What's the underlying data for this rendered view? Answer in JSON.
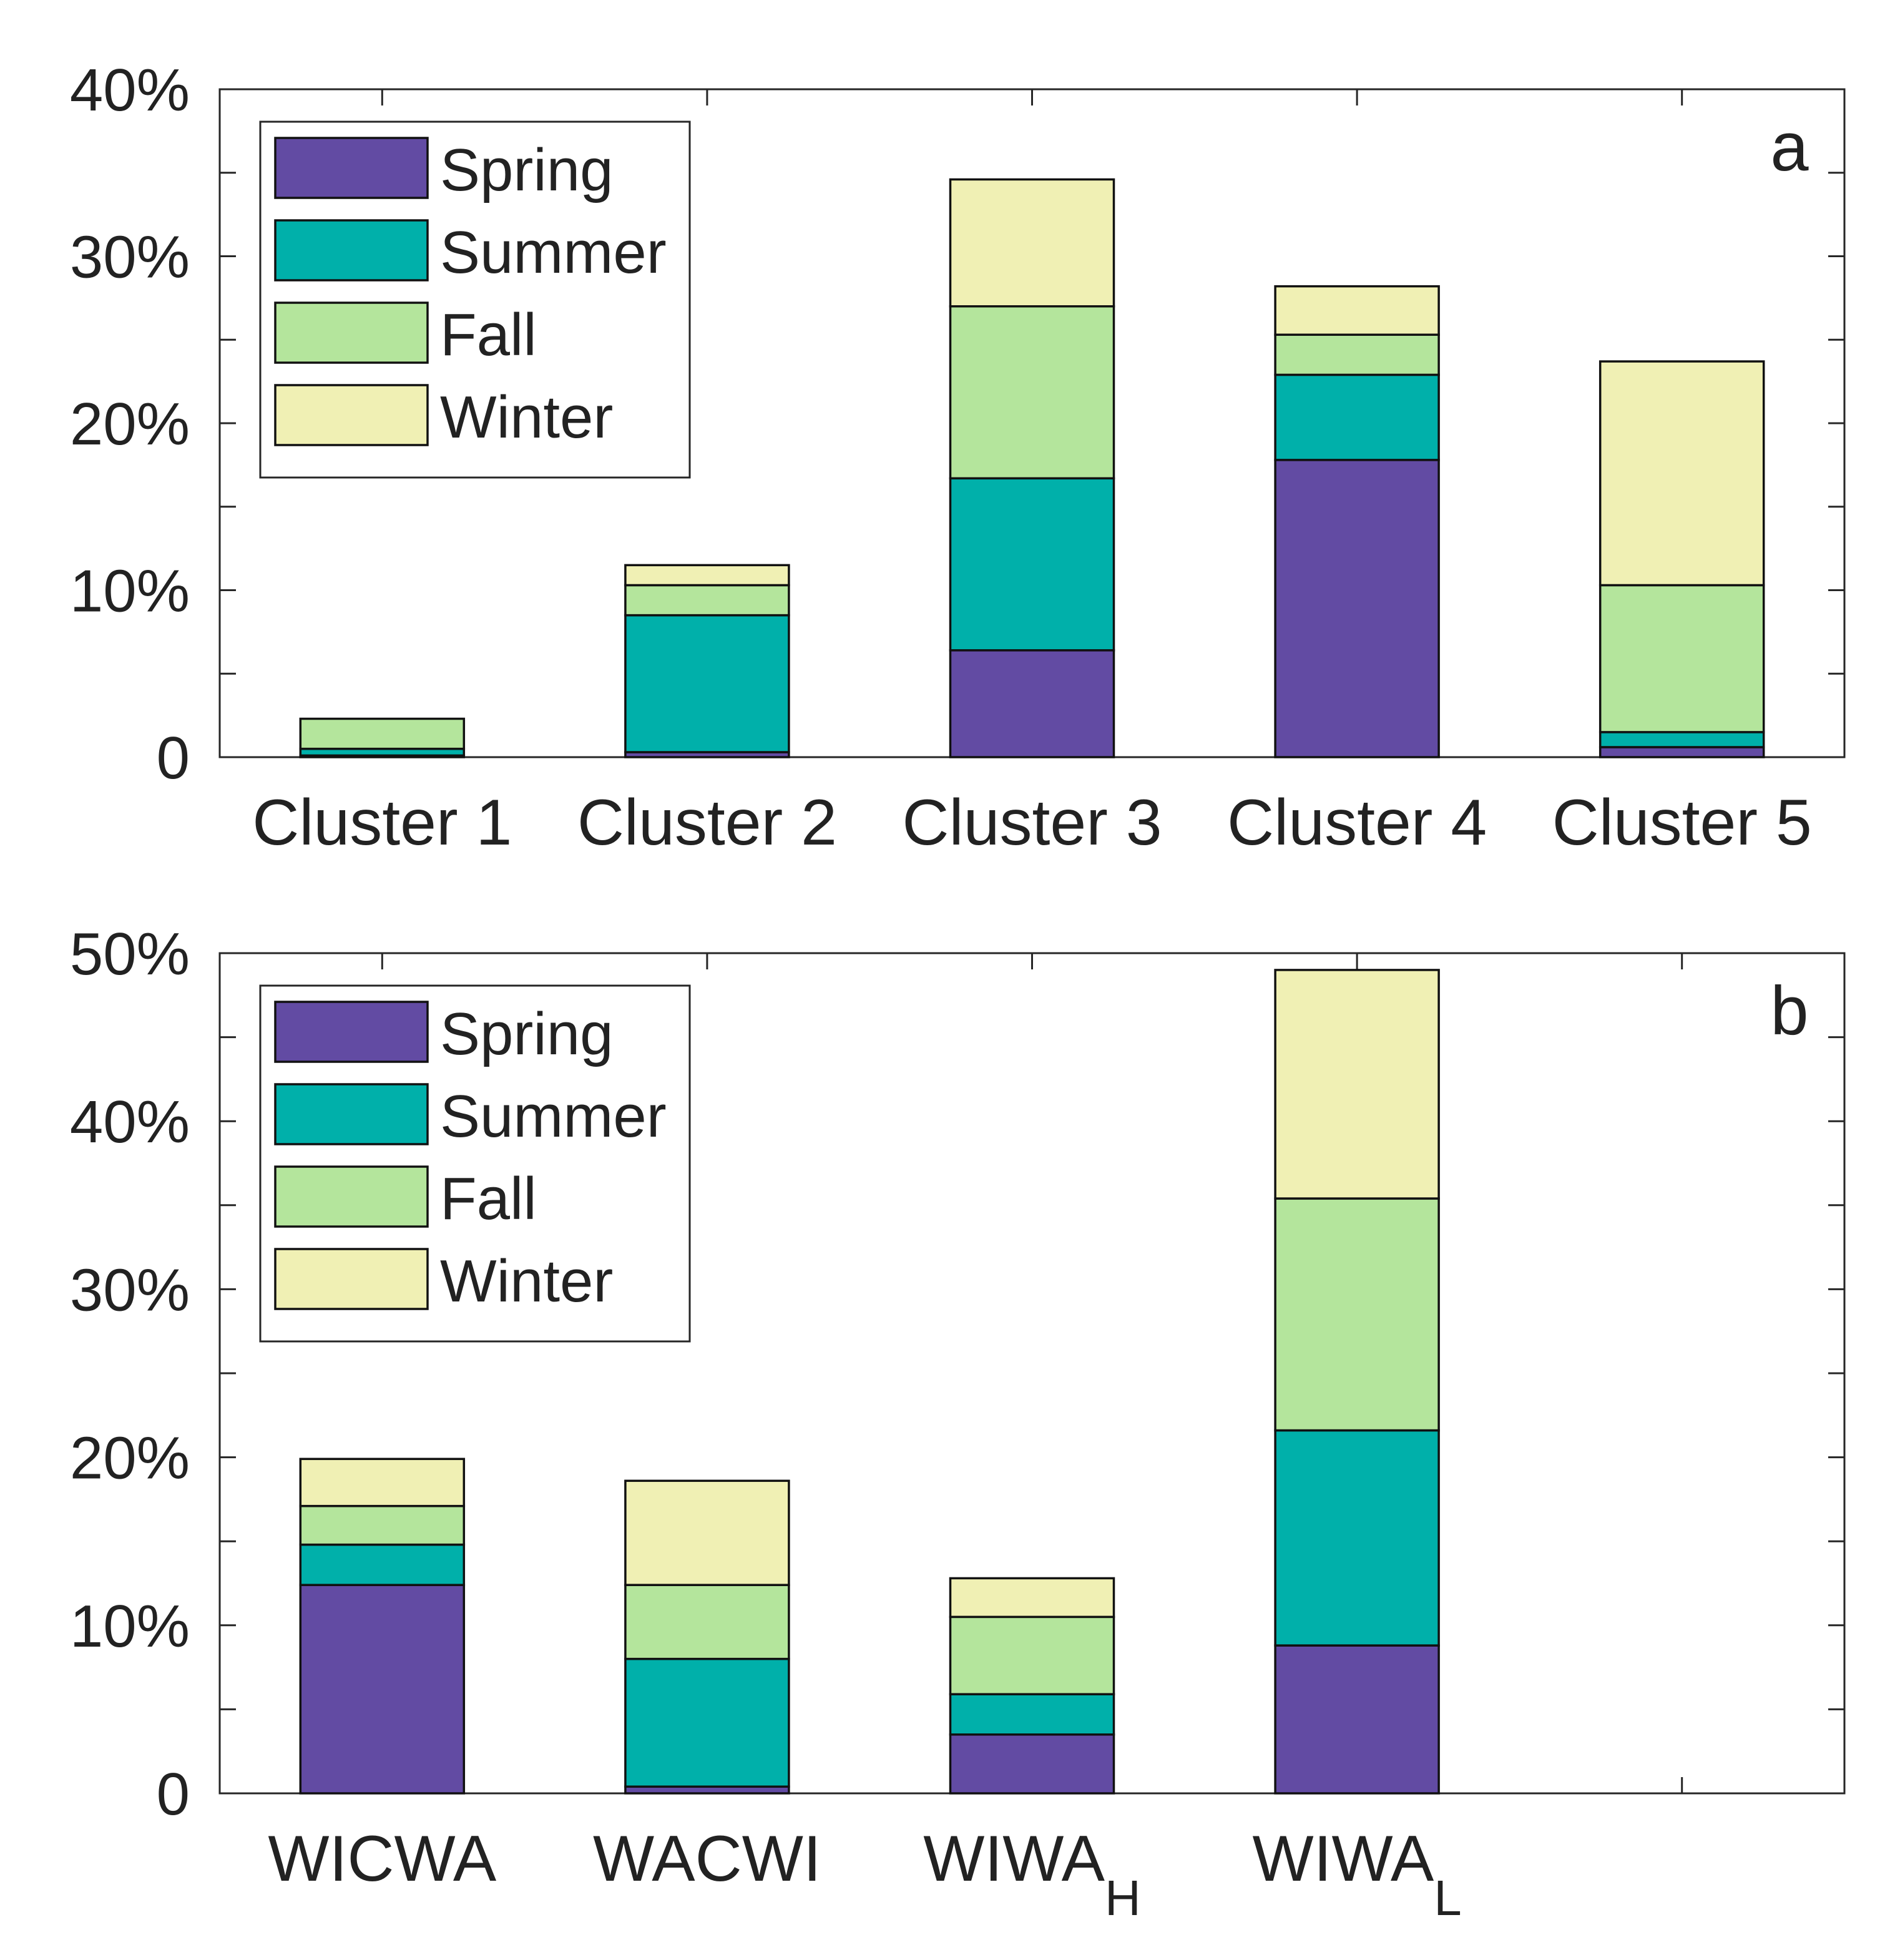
{
  "chart_data": [
    {
      "panel_label": "a",
      "type": "bar",
      "stacked": true,
      "categories": [
        {
          "main": "Cluster 1",
          "sub": ""
        },
        {
          "main": "Cluster 2",
          "sub": ""
        },
        {
          "main": "Cluster 3",
          "sub": ""
        },
        {
          "main": "Cluster 4",
          "sub": ""
        },
        {
          "main": "Cluster 5",
          "sub": ""
        }
      ],
      "series": [
        {
          "name": "Spring",
          "color": "#624ba3",
          "values": [
            0.1,
            0.3,
            6.4,
            17.8,
            0.6
          ]
        },
        {
          "name": "Summer",
          "color": "#00b0aa",
          "values": [
            0.4,
            8.2,
            10.3,
            5.1,
            0.9
          ]
        },
        {
          "name": "Fall",
          "color": "#b4e59c",
          "values": [
            1.8,
            1.8,
            10.3,
            2.4,
            8.8
          ]
        },
        {
          "name": "Winter",
          "color": "#f0f0b4",
          "values": [
            0.0,
            1.2,
            7.6,
            2.9,
            13.4
          ]
        }
      ],
      "ylim": [
        0,
        40
      ],
      "yticks": [
        0,
        10,
        20,
        30,
        40
      ],
      "ytick_labels": [
        "0",
        "10%",
        "20%",
        "30%",
        "40%"
      ],
      "legend_position": "top-left",
      "grid": false,
      "title": "",
      "xlabel": "",
      "ylabel": ""
    },
    {
      "panel_label": "b",
      "type": "bar",
      "stacked": true,
      "categories": [
        {
          "main": "WICWA",
          "sub": ""
        },
        {
          "main": "WACWI",
          "sub": ""
        },
        {
          "main": "WIWA",
          "sub": "H"
        },
        {
          "main": "WIWA",
          "sub": "L"
        },
        {
          "main": "",
          "sub": ""
        }
      ],
      "series": [
        {
          "name": "Spring",
          "color": "#624ba3",
          "values": [
            12.4,
            0.4,
            3.5,
            8.8,
            0
          ]
        },
        {
          "name": "Summer",
          "color": "#00b0aa",
          "values": [
            2.4,
            7.6,
            2.4,
            12.8,
            0
          ]
        },
        {
          "name": "Fall",
          "color": "#b4e59c",
          "values": [
            2.3,
            4.4,
            4.6,
            13.8,
            0
          ]
        },
        {
          "name": "Winter",
          "color": "#f0f0b4",
          "values": [
            2.8,
            6.2,
            2.3,
            13.6,
            0
          ]
        }
      ],
      "ylim": [
        0,
        50
      ],
      "yticks": [
        0,
        10,
        20,
        30,
        40,
        50
      ],
      "ytick_labels": [
        "0",
        "10%",
        "20%",
        "30%",
        "40%",
        "50%"
      ],
      "legend_position": "top-left",
      "grid": false,
      "title": "",
      "xlabel": "",
      "ylabel": ""
    }
  ]
}
